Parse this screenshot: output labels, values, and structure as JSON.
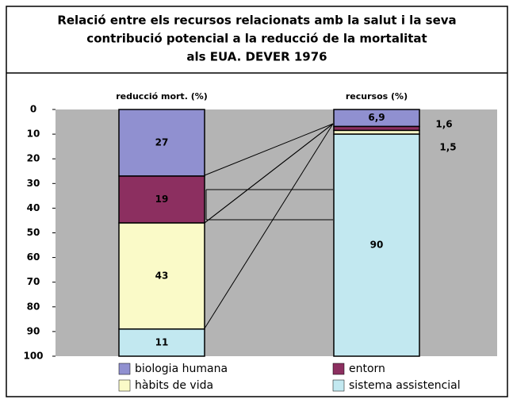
{
  "chart_data": {
    "type": "stacked_bar",
    "title": [
      "Relació entre els recursos relacionats amb la salut i la seva",
      "contribució potencial a la reducció de la mortalitat",
      "als EUA. DEVER 1976"
    ],
    "categories": [
      "reducció mort. (%)",
      "recursos (%)"
    ],
    "series": [
      {
        "name": "biologia humana",
        "color": "#9090d0",
        "values": [
          27,
          6.9
        ],
        "value_labels": [
          "27",
          "6,9"
        ]
      },
      {
        "name": "entorn",
        "color": "#8c2f60",
        "values": [
          19,
          1.6
        ],
        "value_labels": [
          "19",
          "1,6"
        ]
      },
      {
        "name": "hàbits de vida",
        "color": "#fafac8",
        "values": [
          43,
          1.5
        ],
        "value_labels": [
          "43",
          "1,5"
        ]
      },
      {
        "name": "sistema assistencial",
        "color": "#c2e8f0",
        "values": [
          11,
          90
        ],
        "value_labels": [
          "11",
          "90"
        ]
      }
    ],
    "ylim": [
      0,
      100
    ],
    "yticks": [
      0,
      10,
      20,
      30,
      40,
      50,
      60,
      70,
      80,
      90,
      100
    ],
    "y_inverted": true,
    "background": "#b4b4b4"
  }
}
